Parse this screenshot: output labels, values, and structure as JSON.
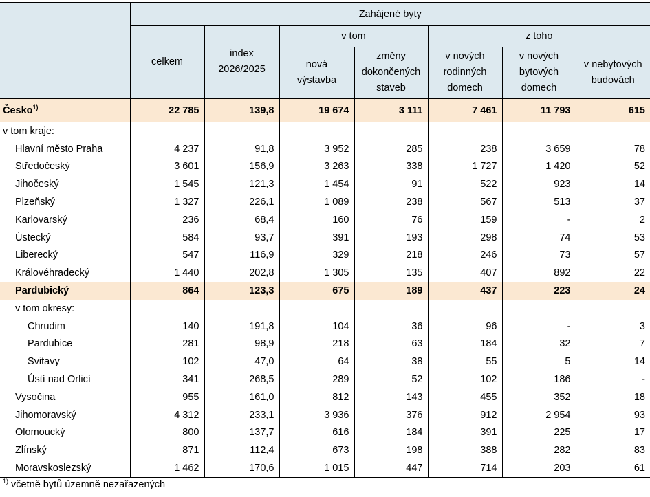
{
  "header": {
    "group_title": "Zahájené byty",
    "v_tom": "v tom",
    "z_toho": "z toho",
    "col_celkem": "celkem",
    "col_index_l1": "index",
    "col_index_l2": "2026/2025",
    "col_nova_l1": "nová",
    "col_nova_l2": "výstavba",
    "col_zmeny_l1": "změny",
    "col_zmeny_l2": "dokončených",
    "col_zmeny_l3": "staveb",
    "col_rodinne_l1": "v nových",
    "col_rodinne_l2": "rodinných",
    "col_rodinne_l3": "domech",
    "col_bytove_l1": "v nových",
    "col_bytove_l2": "bytových",
    "col_bytove_l3": "domech",
    "col_nebytove_l1": "v nebytových",
    "col_nebytove_l2": "budovách"
  },
  "rows": {
    "cesko": {
      "name": "Česko",
      "sup": "1)",
      "v": [
        "22 785",
        "139,8",
        "19 674",
        "3 111",
        "7 461",
        "11 793",
        "615"
      ]
    },
    "v_tom_kraje": {
      "name": "v tom kraje:"
    },
    "praha": {
      "name": "Hlavní město Praha",
      "v": [
        "4 237",
        "91,8",
        "3 952",
        "285",
        "238",
        "3 659",
        "78"
      ]
    },
    "stredocesky": {
      "name": "Středočeský",
      "v": [
        "3 601",
        "156,9",
        "3 263",
        "338",
        "1 727",
        "1 420",
        "52"
      ]
    },
    "jihocesky": {
      "name": "Jihočeský",
      "v": [
        "1 545",
        "121,3",
        "1 454",
        "91",
        "522",
        "923",
        "14"
      ]
    },
    "plzensky": {
      "name": "Plzeňský",
      "v": [
        "1 327",
        "226,1",
        "1 089",
        "238",
        "567",
        "513",
        "37"
      ]
    },
    "karlovarsky": {
      "name": "Karlovarský",
      "v": [
        "236",
        "68,4",
        "160",
        "76",
        "159",
        "-",
        "2"
      ]
    },
    "ustecky": {
      "name": "Ústecký",
      "v": [
        "584",
        "93,7",
        "391",
        "193",
        "298",
        "74",
        "53"
      ]
    },
    "liberecky": {
      "name": "Liberecký",
      "v": [
        "547",
        "116,9",
        "329",
        "218",
        "246",
        "73",
        "57"
      ]
    },
    "kralovehradecky": {
      "name": "Královéhradecký",
      "v": [
        "1 440",
        "202,8",
        "1 305",
        "135",
        "407",
        "892",
        "22"
      ]
    },
    "pardubicky": {
      "name": "Pardubický",
      "v": [
        "864",
        "123,3",
        "675",
        "189",
        "437",
        "223",
        "24"
      ]
    },
    "v_tom_okresy": {
      "name": "v tom okresy:"
    },
    "chrudim": {
      "name": "Chrudim",
      "v": [
        "140",
        "191,8",
        "104",
        "36",
        "96",
        "-",
        "3"
      ]
    },
    "pardubice": {
      "name": "Pardubice",
      "v": [
        "281",
        "98,9",
        "218",
        "63",
        "184",
        "32",
        "7"
      ]
    },
    "svitavy": {
      "name": "Svitavy",
      "v": [
        "102",
        "47,0",
        "64",
        "38",
        "55",
        "5",
        "14"
      ]
    },
    "usti": {
      "name": "Ústí nad Orlicí",
      "v": [
        "341",
        "268,5",
        "289",
        "52",
        "102",
        "186",
        "-"
      ]
    },
    "vysocina": {
      "name": "Vysočina",
      "v": [
        "955",
        "161,0",
        "812",
        "143",
        "455",
        "352",
        "18"
      ]
    },
    "jihomoravsky": {
      "name": "Jihomoravský",
      "v": [
        "4 312",
        "233,1",
        "3 936",
        "376",
        "912",
        "2 954",
        "93"
      ]
    },
    "olomoucky": {
      "name": "Olomoucký",
      "v": [
        "800",
        "137,7",
        "616",
        "184",
        "391",
        "225",
        "17"
      ]
    },
    "zlinsky": {
      "name": "Zlínský",
      "v": [
        "871",
        "112,4",
        "673",
        "198",
        "388",
        "282",
        "83"
      ]
    },
    "moravskoslezsky": {
      "name": "Moravskoslezský",
      "v": [
        "1 462",
        "170,6",
        "1 015",
        "447",
        "714",
        "203",
        "61"
      ]
    }
  },
  "footnote": {
    "sup": "1)",
    "text": " včetně bytů územně nezařazených"
  },
  "colors": {
    "header_bg": "#dde9ef",
    "highlight_bg": "#fbe8d2"
  }
}
